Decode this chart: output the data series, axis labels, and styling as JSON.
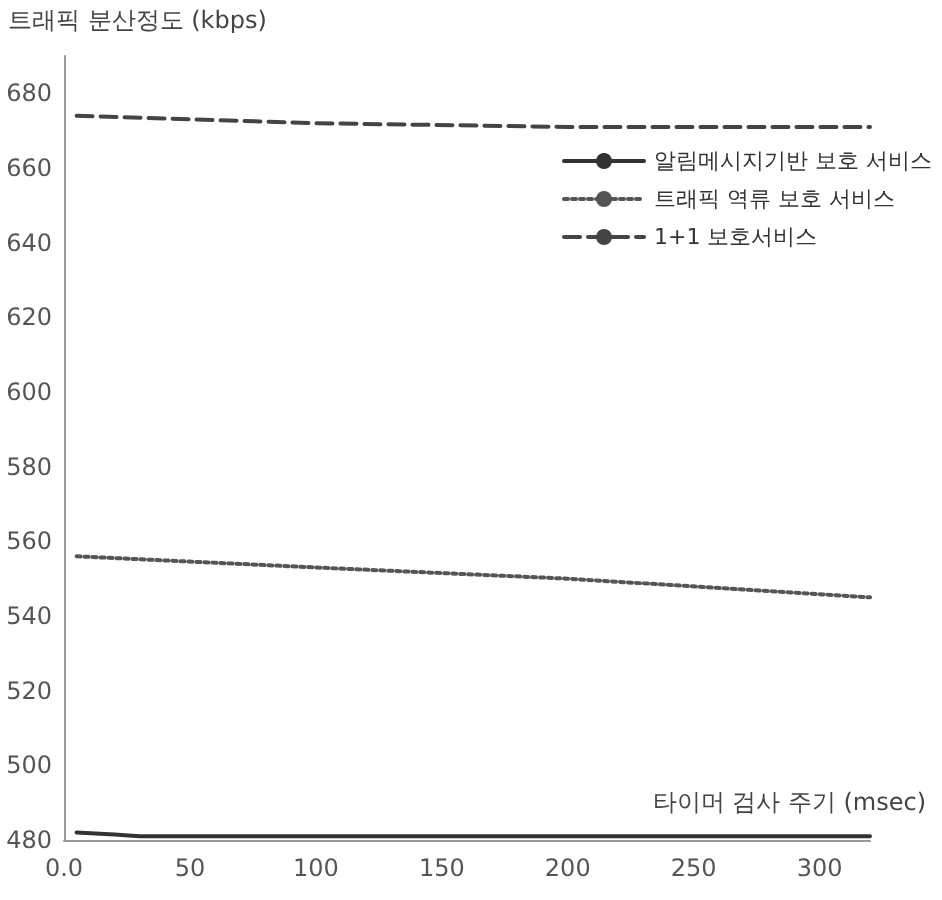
{
  "chart_data": {
    "type": "line",
    "xlabel": "타이머 검사 주기 (msec)",
    "ylabel": "트래픽 분산정도 (kbps)",
    "xlim": [
      0,
      320
    ],
    "xticks": [
      {
        "value": 0,
        "label": "0.0"
      },
      50,
      100,
      150,
      200,
      250,
      300
    ],
    "ylim": [
      480,
      690
    ],
    "yticks": [
      480,
      500,
      520,
      540,
      560,
      580,
      600,
      620,
      640,
      660,
      680
    ],
    "grid": false,
    "legend": "top right",
    "marker": "none",
    "series": [
      {
        "name": "알림메시지기반 보호 서비스",
        "color": "#333333",
        "line_style": "solid",
        "x": [
          5,
          20,
          30,
          135,
          320
        ],
        "values": [
          482,
          481.5,
          481,
          481,
          481
        ]
      },
      {
        "name": "트래픽 역류 보호 서비스",
        "color": "#555555",
        "line_style": "dotted",
        "x": [
          5,
          100,
          200,
          320
        ],
        "values": [
          556,
          553,
          550,
          545
        ]
      },
      {
        "name": "1+1 보호서비스",
        "color": "#444444",
        "line_style": "dashed",
        "x": [
          5,
          100,
          200,
          320
        ],
        "values": [
          674,
          672,
          671,
          671
        ]
      }
    ]
  }
}
